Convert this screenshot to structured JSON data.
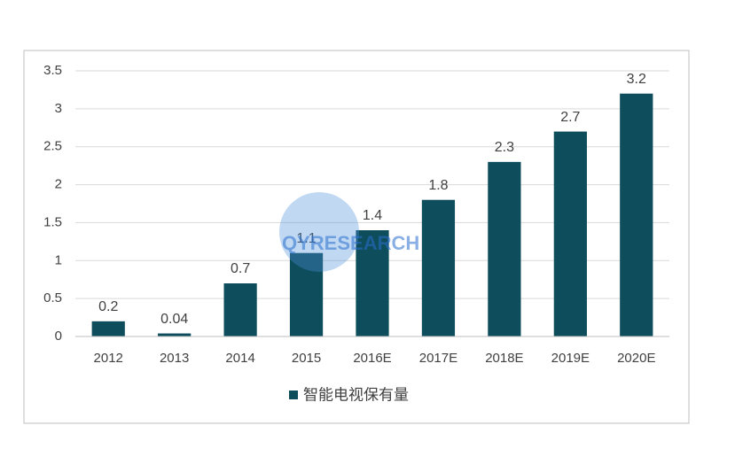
{
  "chart_data": {
    "type": "bar",
    "categories": [
      "2012",
      "2013",
      "2014",
      "2015",
      "2016E",
      "2017E",
      "2018E",
      "2019E",
      "2020E"
    ],
    "series": [
      {
        "name": "智能电视保有量",
        "color": "#0e4d5c",
        "values": [
          0.2,
          0.04,
          0.7,
          1.1,
          1.4,
          1.8,
          2.3,
          2.7,
          3.2
        ]
      }
    ],
    "ylim": [
      0,
      3.5
    ],
    "yticks": [
      0,
      0.5,
      1,
      1.5,
      2,
      2.5,
      3,
      3.5
    ],
    "grid": true,
    "legend": "bottom",
    "watermark": "QYRESEARCH"
  }
}
